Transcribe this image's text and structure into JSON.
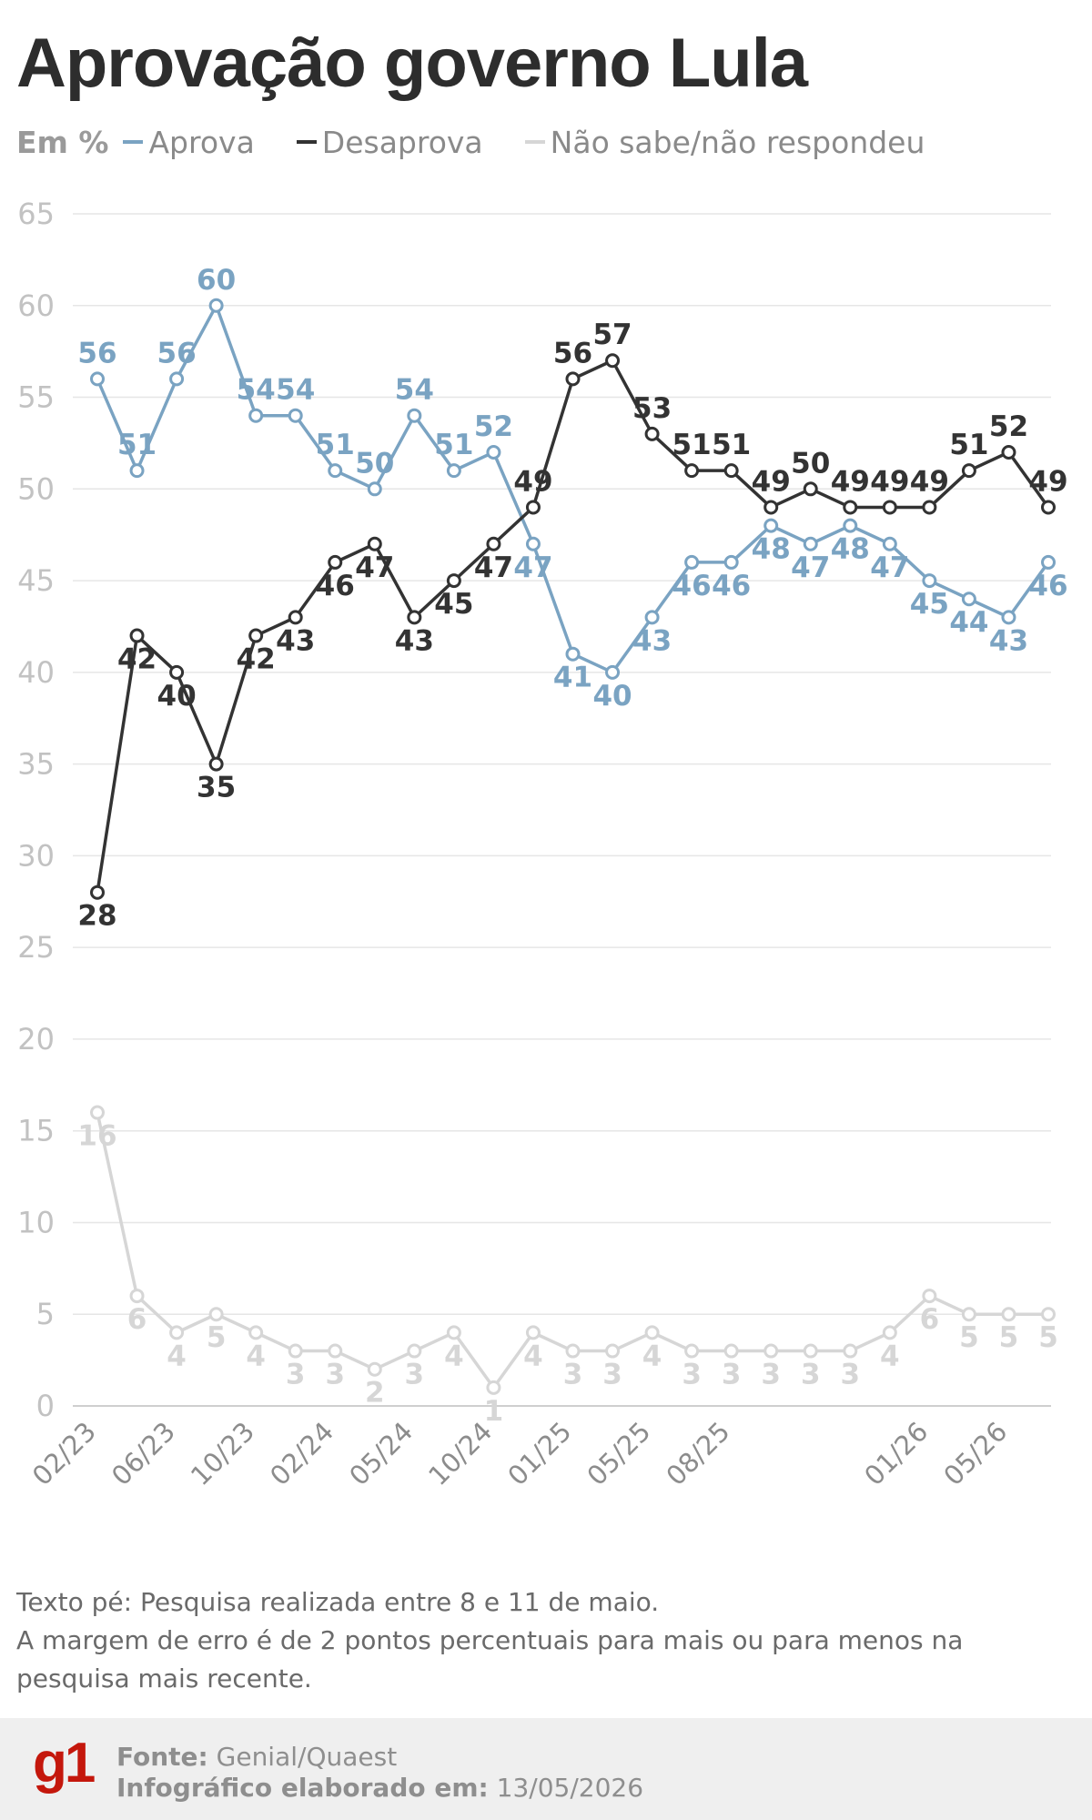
{
  "title": "Aprovação governo Lula",
  "legend": {
    "unit": "Em %"
  },
  "chart_data": {
    "type": "line",
    "ylim": [
      0,
      65
    ],
    "yticks": [
      0,
      5,
      10,
      15,
      20,
      25,
      30,
      35,
      40,
      45,
      50,
      55,
      60,
      65
    ],
    "grid": true,
    "legend_position": "top-left",
    "xtick_labels": [
      {
        "label": "02/23",
        "i": 0
      },
      {
        "label": "06/23",
        "i": 2
      },
      {
        "label": "10/23",
        "i": 4
      },
      {
        "label": "02/24",
        "i": 6
      },
      {
        "label": "05/24",
        "i": 8
      },
      {
        "label": "10/24",
        "i": 10
      },
      {
        "label": "01/25",
        "i": 12
      },
      {
        "label": "05/25",
        "i": 14
      },
      {
        "label": "08/25",
        "i": 16
      },
      {
        "label": "01/26",
        "i": 21
      },
      {
        "label": "05/26",
        "i": 23
      }
    ],
    "series": [
      {
        "name": "Aprova",
        "color": "#7aa3c2",
        "values": [
          56,
          51,
          56,
          60,
          54,
          54,
          51,
          50,
          54,
          51,
          52,
          47,
          41,
          40,
          43,
          46,
          46,
          48,
          47,
          48,
          47,
          45,
          44,
          43,
          46
        ],
        "x_index": [
          0,
          1,
          2,
          3,
          4,
          5,
          6,
          7,
          8,
          9,
          10,
          11,
          12,
          13,
          14,
          15,
          16,
          17,
          18,
          19,
          20,
          21,
          22,
          23,
          24
        ]
      },
      {
        "name": "Desaprova",
        "color": "#333333",
        "values": [
          28,
          42,
          40,
          35,
          42,
          43,
          46,
          47,
          43,
          45,
          47,
          49,
          56,
          57,
          53,
          51,
          51,
          49,
          50,
          49,
          49,
          49,
          51,
          52,
          49
        ],
        "x_index": [
          0,
          1,
          2,
          3,
          4,
          5,
          6,
          7,
          8,
          9,
          10,
          11,
          12,
          13,
          14,
          15,
          16,
          17,
          18,
          19,
          20,
          21,
          22,
          23,
          24
        ]
      },
      {
        "name": "Não sabe/não respondeu",
        "color": "#d6d6d6",
        "values": [
          16,
          6,
          4,
          5,
          4,
          3,
          3,
          2,
          3,
          4,
          1,
          4,
          3,
          3,
          4,
          3,
          3,
          3,
          3,
          3,
          4,
          6,
          5,
          5,
          5
        ],
        "x_index": [
          0,
          1,
          2,
          3,
          4,
          5,
          6,
          7,
          8,
          9,
          10,
          11,
          12,
          13,
          14,
          15,
          16,
          17,
          18,
          19,
          20,
          21,
          22,
          23,
          24
        ]
      }
    ]
  },
  "note": {
    "line1": "Texto pé: Pesquisa realizada entre 8 e 11 de maio.",
    "line2": "A margem de erro é de 2 pontos percentuais para mais ou para menos na pesquisa mais recente."
  },
  "footer": {
    "logo": "g1",
    "source_label": "Fonte:",
    "source_value": "Genial/Quaest",
    "made_label": "Infográfico elaborado em:",
    "made_value": "13/05/2026"
  }
}
